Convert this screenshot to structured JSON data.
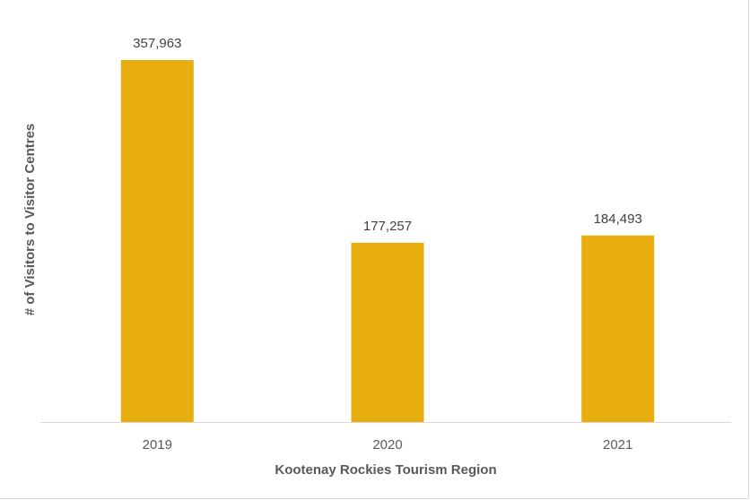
{
  "chart_data": {
    "type": "bar",
    "categories": [
      "2019",
      "2020",
      "2021"
    ],
    "values": [
      357963,
      177257,
      184493
    ],
    "data_labels": [
      "357,963",
      "177,257",
      "184,493"
    ],
    "title": "",
    "xlabel": "Kootenay Rockies Tourism Region",
    "ylabel": "# of Visitors to Visitor Centres",
    "ylim": [
      0,
      360000
    ],
    "grid": false,
    "legend": "none",
    "bar_color": "#E8AE10",
    "axis_color": "#D9D9D9"
  }
}
